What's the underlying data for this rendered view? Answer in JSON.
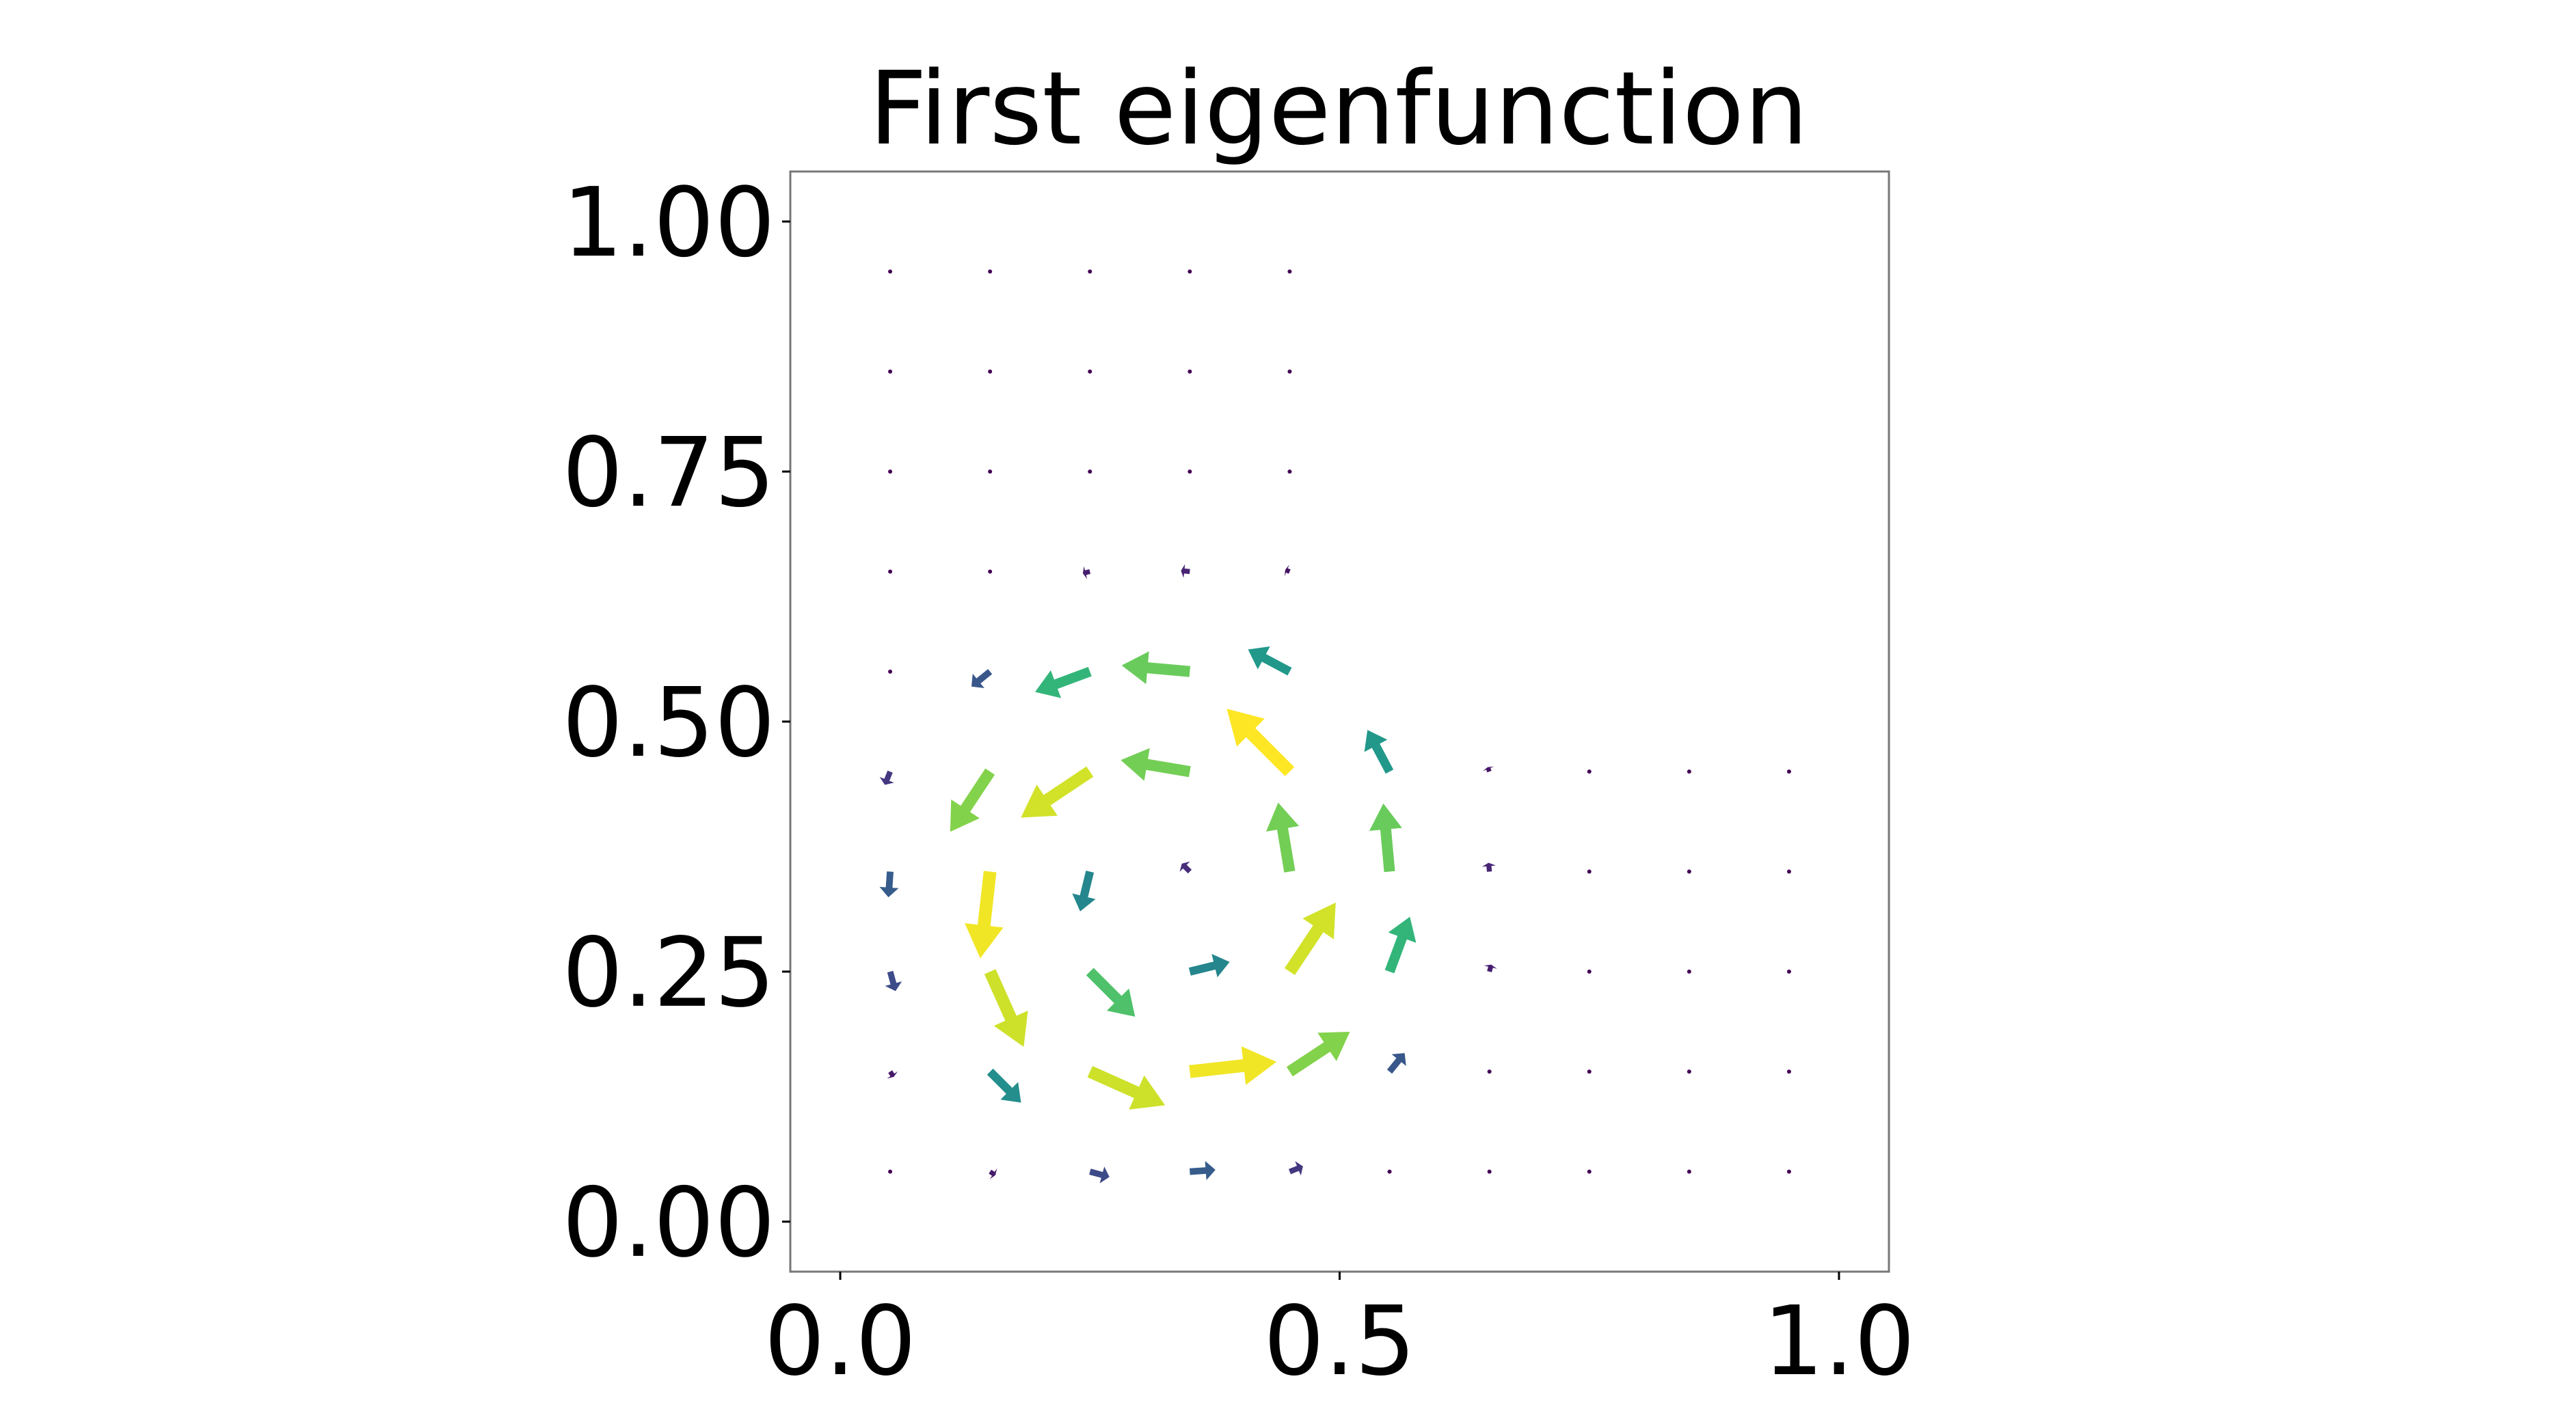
{
  "chart_data": {
    "type": "quiver",
    "title": "First eigenfunction",
    "cmap": "viridis",
    "xlim": [
      -0.05,
      1.05
    ],
    "ylim": [
      -0.05,
      1.05
    ],
    "xticks": [
      {
        "value": 0,
        "label": "0.0"
      },
      {
        "value": 0.5,
        "label": "0.5"
      },
      {
        "value": 1,
        "label": "1.0"
      }
    ],
    "yticks": [
      {
        "value": 0,
        "label": "0.00"
      },
      {
        "value": 0.25,
        "label": "0.25"
      },
      {
        "value": 0.5,
        "label": "0.50"
      },
      {
        "value": 0.75,
        "label": "0.75"
      },
      {
        "value": 1,
        "label": "1.00"
      }
    ],
    "x": [
      0.05,
      0.15,
      0.25,
      0.35,
      0.45,
      0.55,
      0.65,
      0.75,
      0.85,
      0.95,
      0.05,
      0.15,
      0.25,
      0.35,
      0.45,
      0.55,
      0.65,
      0.75,
      0.85,
      0.95,
      0.05,
      0.15,
      0.25,
      0.35,
      0.45,
      0.55,
      0.65,
      0.75,
      0.85,
      0.95,
      0.05,
      0.15,
      0.25,
      0.35,
      0.45,
      0.55,
      0.65,
      0.75,
      0.85,
      0.95,
      0.05,
      0.15,
      0.25,
      0.35,
      0.45,
      0.55,
      0.65,
      0.75,
      0.85,
      0.95,
      0.05,
      0.15,
      0.25,
      0.35,
      0.45,
      0.05,
      0.15,
      0.25,
      0.35,
      0.45,
      0.05,
      0.15,
      0.25,
      0.35,
      0.45,
      0.05,
      0.15,
      0.25,
      0.35,
      0.45,
      0.05,
      0.15,
      0.25,
      0.35,
      0.45
    ],
    "y": [
      0.05,
      0.05,
      0.05,
      0.05,
      0.05,
      0.05,
      0.05,
      0.05,
      0.05,
      0.05,
      0.15,
      0.15,
      0.15,
      0.15,
      0.15,
      0.15,
      0.15,
      0.15,
      0.15,
      0.15,
      0.25,
      0.25,
      0.25,
      0.25,
      0.25,
      0.25,
      0.25,
      0.25,
      0.25,
      0.25,
      0.35,
      0.35,
      0.35,
      0.35,
      0.35,
      0.35,
      0.35,
      0.35,
      0.35,
      0.35,
      0.45,
      0.45,
      0.45,
      0.45,
      0.45,
      0.45,
      0.45,
      0.45,
      0.45,
      0.45,
      0.55,
      0.55,
      0.55,
      0.55,
      0.55,
      0.65,
      0.65,
      0.65,
      0.65,
      0.65,
      0.75,
      0.75,
      0.75,
      0.75,
      0.75,
      0.85,
      0.85,
      0.85,
      0.85,
      0.85,
      0.95,
      0.95,
      0.95,
      0.95,
      0.95
    ],
    "u": [
      0,
      0.06,
      0.22,
      0.29,
      0.15,
      0.02,
      0,
      0,
      0,
      0,
      0.04,
      0.35,
      0.85,
      0.98,
      0.68,
      0.17,
      0.01,
      0,
      0,
      0,
      0.06,
      0.38,
      0.51,
      0.45,
      0.52,
      0.23,
      0.02,
      0,
      0,
      0,
      -0.02,
      -0.11,
      -0.11,
      -0.09,
      -0.13,
      -0.07,
      -0.01,
      0,
      0,
      0,
      -0.06,
      -0.45,
      -0.78,
      -0.78,
      -0.71,
      -0.25,
      -0.02,
      0,
      0,
      0,
      -0.02,
      -0.21,
      -0.62,
      -0.77,
      -0.47,
      0,
      -0.02,
      -0.08,
      -0.1,
      -0.05,
      0,
      0,
      0,
      0,
      0,
      0,
      0,
      0,
      0,
      0,
      0,
      0,
      0,
      0,
      0
    ],
    "v": [
      0,
      -0.04,
      -0.06,
      0.02,
      0.06,
      0.02,
      0,
      0,
      0,
      0,
      -0.06,
      -0.35,
      -0.38,
      0.11,
      0.45,
      0.21,
      0.02,
      0,
      0,
      0,
      -0.22,
      -0.85,
      -0.51,
      0.11,
      0.78,
      0.62,
      0.08,
      0,
      0,
      0,
      -0.29,
      -0.98,
      -0.45,
      0.09,
      0.78,
      0.77,
      0.1,
      0,
      0,
      0,
      -0.15,
      -0.68,
      -0.52,
      0.13,
      0.71,
      0.47,
      0.05,
      0,
      0,
      0,
      -0.02,
      -0.17,
      -0.23,
      0.07,
      0.25,
      0,
      -0.01,
      -0.02,
      0.01,
      0.02,
      0,
      0,
      0,
      0,
      0,
      0,
      0,
      0,
      0,
      0,
      0,
      0,
      0,
      0,
      0
    ]
  }
}
